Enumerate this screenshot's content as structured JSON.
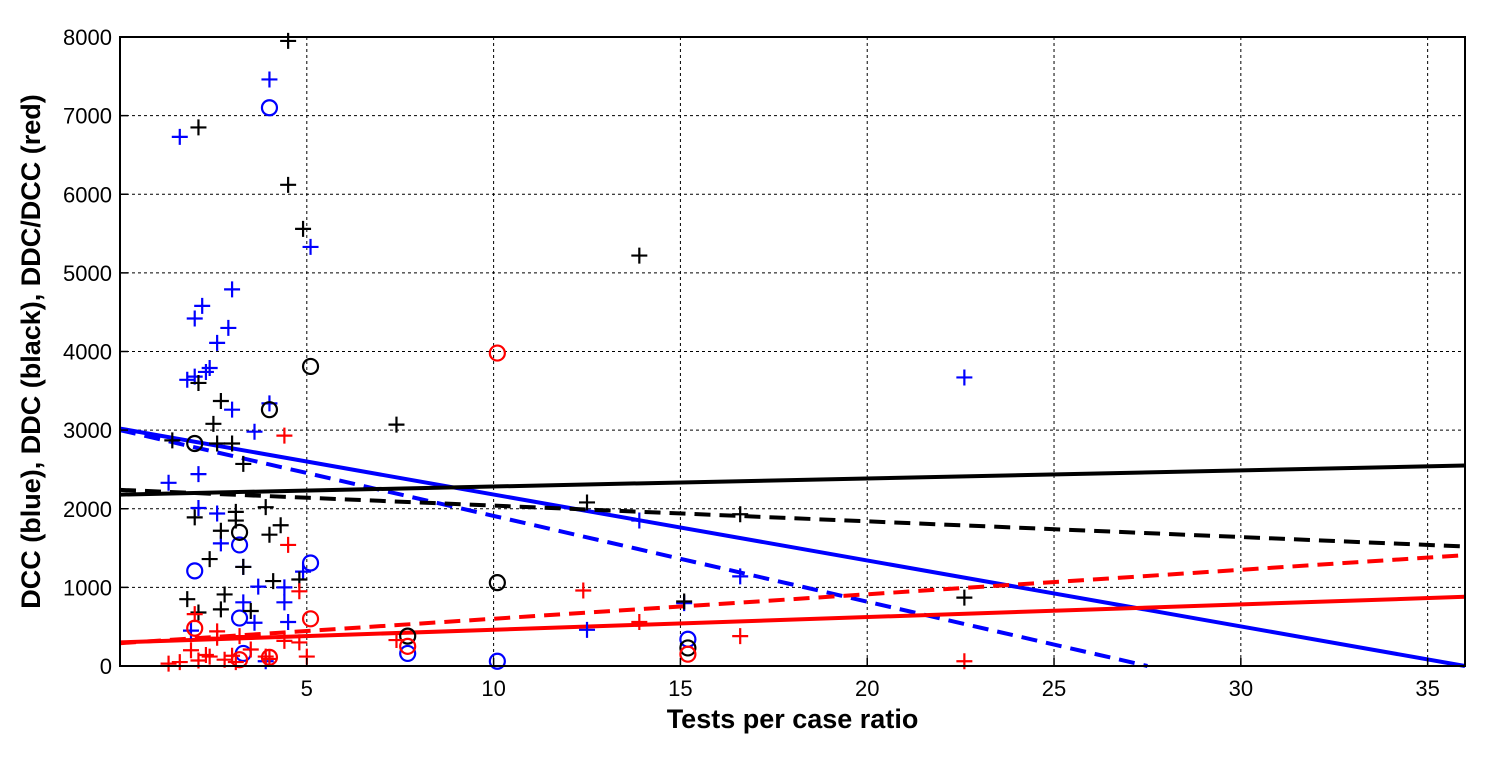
{
  "chart_data": {
    "type": "scatter",
    "xlabel": "Tests per case ratio",
    "ylabel": "DCC (blue), DDC (black), DDC/DCC (red)",
    "xlim": [
      0,
      36
    ],
    "ylim": [
      0,
      8000
    ],
    "x_ticks": [
      5,
      10,
      15,
      20,
      25,
      30,
      35
    ],
    "y_ticks": [
      0,
      1000,
      2000,
      3000,
      4000,
      5000,
      6000,
      7000,
      8000
    ],
    "grid": true,
    "colors": {
      "blue": "#0000ff",
      "black": "#000000",
      "red": "#ff0000"
    },
    "series": [
      {
        "color": "blue",
        "marker": "plus",
        "points": [
          [
            1.3,
            2330
          ],
          [
            1.6,
            6730
          ],
          [
            1.8,
            3640
          ],
          [
            2.0,
            3680
          ],
          [
            2.0,
            4420
          ],
          [
            2.2,
            4580
          ],
          [
            2.1,
            2440
          ],
          [
            2.1,
            2010
          ],
          [
            2.3,
            3740
          ],
          [
            2.4,
            3790
          ],
          [
            2.6,
            4110
          ],
          [
            2.6,
            1940
          ],
          [
            2.9,
            4300
          ],
          [
            3.0,
            4790
          ],
          [
            3.0,
            3260
          ],
          [
            2.7,
            1560
          ],
          [
            3.3,
            1260
          ],
          [
            3.3,
            810
          ],
          [
            3.6,
            2980
          ],
          [
            3.7,
            1010
          ],
          [
            4.0,
            7460
          ],
          [
            4.0,
            3340
          ],
          [
            4.4,
            1000
          ],
          [
            4.4,
            810
          ],
          [
            4.5,
            560
          ],
          [
            4.9,
            1200
          ],
          [
            5.1,
            5330
          ],
          [
            1.9,
            450
          ],
          [
            3.6,
            550
          ],
          [
            3.9,
            60
          ],
          [
            12.5,
            460
          ],
          [
            13.9,
            1850
          ],
          [
            15.1,
            800
          ],
          [
            16.6,
            1140
          ],
          [
            22.6,
            3670
          ]
        ]
      },
      {
        "color": "blue",
        "marker": "circle",
        "points": [
          [
            2.0,
            1210
          ],
          [
            3.2,
            1540
          ],
          [
            3.2,
            610
          ],
          [
            3.3,
            160
          ],
          [
            4.0,
            7100
          ],
          [
            5.1,
            1310
          ],
          [
            7.7,
            160
          ],
          [
            10.1,
            60
          ],
          [
            15.2,
            340
          ]
        ]
      },
      {
        "color": "black",
        "marker": "plus",
        "points": [
          [
            1.4,
            2870
          ],
          [
            1.8,
            850
          ],
          [
            2.0,
            1890
          ],
          [
            2.1,
            3600
          ],
          [
            2.1,
            6850
          ],
          [
            2.1,
            680
          ],
          [
            2.4,
            1360
          ],
          [
            2.5,
            3080
          ],
          [
            2.6,
            2830
          ],
          [
            2.7,
            3370
          ],
          [
            2.7,
            1720
          ],
          [
            2.7,
            720
          ],
          [
            2.8,
            910
          ],
          [
            3.0,
            2830
          ],
          [
            3.1,
            1960
          ],
          [
            3.1,
            1850
          ],
          [
            3.3,
            2570
          ],
          [
            3.3,
            1260
          ],
          [
            3.5,
            700
          ],
          [
            3.9,
            2020
          ],
          [
            4.0,
            1670
          ],
          [
            4.1,
            1080
          ],
          [
            4.3,
            1790
          ],
          [
            4.5,
            7950
          ],
          [
            4.5,
            6120
          ],
          [
            4.8,
            1100
          ],
          [
            4.9,
            5560
          ],
          [
            7.4,
            3070
          ],
          [
            12.5,
            2080
          ],
          [
            13.9,
            5220
          ],
          [
            15.1,
            820
          ],
          [
            16.6,
            1930
          ],
          [
            22.6,
            870
          ]
        ]
      },
      {
        "color": "black",
        "marker": "circle",
        "points": [
          [
            2.0,
            2830
          ],
          [
            3.2,
            1700
          ],
          [
            4.0,
            3260
          ],
          [
            5.1,
            3810
          ],
          [
            7.7,
            380
          ],
          [
            10.1,
            1060
          ],
          [
            15.2,
            230
          ]
        ]
      },
      {
        "color": "red",
        "marker": "plus",
        "points": [
          [
            1.3,
            30
          ],
          [
            1.6,
            50
          ],
          [
            1.9,
            200
          ],
          [
            2.0,
            660
          ],
          [
            2.1,
            70
          ],
          [
            2.3,
            140
          ],
          [
            2.4,
            120
          ],
          [
            2.6,
            360
          ],
          [
            2.6,
            440
          ],
          [
            2.8,
            80
          ],
          [
            3.0,
            130
          ],
          [
            3.1,
            50
          ],
          [
            3.2,
            380
          ],
          [
            3.5,
            210
          ],
          [
            3.9,
            120
          ],
          [
            4.0,
            90
          ],
          [
            4.4,
            320
          ],
          [
            4.4,
            2930
          ],
          [
            4.5,
            1540
          ],
          [
            4.8,
            300
          ],
          [
            4.8,
            950
          ],
          [
            5.0,
            120
          ],
          [
            7.4,
            330
          ],
          [
            12.4,
            960
          ],
          [
            13.9,
            560
          ],
          [
            16.6,
            380
          ],
          [
            22.6,
            60
          ]
        ]
      },
      {
        "color": "red",
        "marker": "circle",
        "points": [
          [
            2.0,
            480
          ],
          [
            3.2,
            80
          ],
          [
            4.0,
            110
          ],
          [
            5.1,
            600
          ],
          [
            7.7,
            250
          ],
          [
            10.1,
            3980
          ],
          [
            15.2,
            150
          ]
        ]
      }
    ],
    "lines": [
      {
        "color": "blue",
        "style": "solid",
        "from": [
          0,
          3020
        ],
        "to": [
          36,
          0
        ]
      },
      {
        "color": "blue",
        "style": "dashed",
        "from": [
          0,
          3000
        ],
        "to": [
          27.5,
          0
        ]
      },
      {
        "color": "black",
        "style": "solid",
        "from": [
          0,
          2180
        ],
        "to": [
          36,
          2550
        ]
      },
      {
        "color": "black",
        "style": "dashed",
        "from": [
          0,
          2240
        ],
        "to": [
          36,
          1520
        ]
      },
      {
        "color": "red",
        "style": "solid",
        "from": [
          0,
          300
        ],
        "to": [
          36,
          880
        ]
      },
      {
        "color": "red",
        "style": "dashed",
        "from": [
          0,
          290
        ],
        "to": [
          36,
          1410
        ]
      }
    ]
  }
}
